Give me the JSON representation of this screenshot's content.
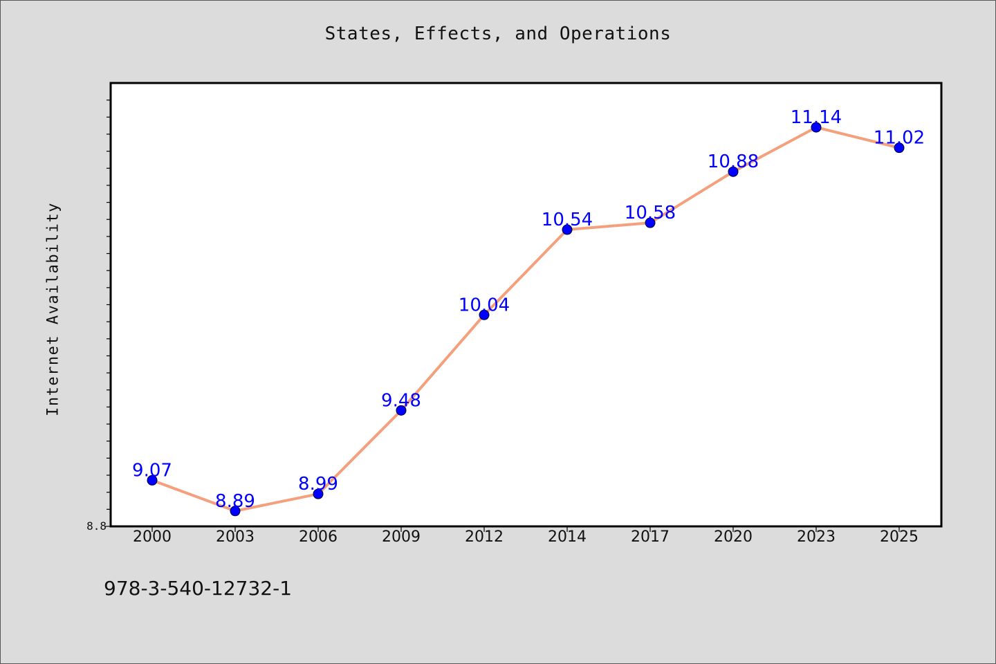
{
  "chart_data": {
    "type": "line",
    "title": "States, Effects, and Operations",
    "xlabel": "",
    "ylabel": "Internet Availability",
    "categories": [
      "2000",
      "2003",
      "2006",
      "2009",
      "2012",
      "2014",
      "2017",
      "2020",
      "2023",
      "2025"
    ],
    "series": [
      {
        "values": [
          9.07,
          8.89,
          8.99,
          9.48,
          10.04,
          10.54,
          10.58,
          10.88,
          11.14,
          11.02
        ],
        "data_labels": [
          "9.07",
          "8.89",
          "8.99",
          "9.48",
          "10.04",
          "10.54",
          "10.58",
          "10.88",
          "11.14",
          "11.02"
        ]
      }
    ],
    "y_tick_labels": [
      "8.8"
    ],
    "ylim": [
      8.8,
      11.4
    ],
    "grid": false,
    "legend": "none",
    "colors": {
      "line": "#f4a07c",
      "marker": "#0000ff",
      "data_label": "#0000ff",
      "plot_background": "#ffffff",
      "page_background": "#dcdcdc"
    }
  },
  "footer": {
    "isbn": "978-3-540-12732-1"
  }
}
